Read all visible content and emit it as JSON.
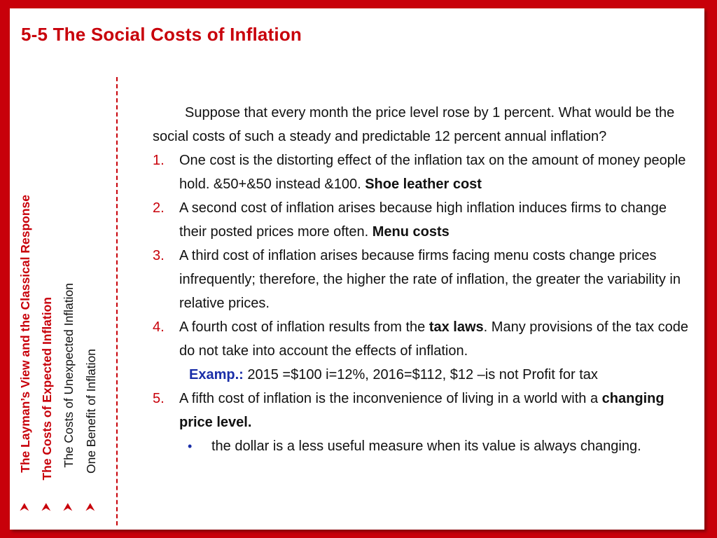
{
  "slide": {
    "title": "5-5 The Social Costs of Inflation",
    "sidebar": [
      {
        "label": "The Layman’s View and the Classical Response",
        "style": "red"
      },
      {
        "label": "The Costs of Expected Inflation",
        "style": "red"
      },
      {
        "label": "The Costs of Unexpected Inflation",
        "style": "black"
      },
      {
        "label": "One Benefit of Inflation",
        "style": "black"
      }
    ],
    "arrow_glyph": "⮝",
    "intro": "Suppose that every month the price level rose by 1 percent. What would be the social costs of such a steady and predictable 12 percent annual inflation?",
    "items": [
      {
        "num": "1.",
        "text": "One cost is the distorting effect of the inflation tax on the amount of money people hold.  &50+&50 instead &100. ",
        "bold": "Shoe leather cost",
        "after": ""
      },
      {
        "num": "2.",
        "text": "A second cost of inflation arises because high inflation induces firms to change their posted prices more often. ",
        "bold": "Menu costs",
        "after": ""
      },
      {
        "num": "3.",
        "text": "A third cost of inflation arises because firms facing menu costs change prices infrequently; therefore, the higher the rate of inflation, the greater the variability in relative prices.",
        "bold": "",
        "after": ""
      },
      {
        "num": "4.",
        "text": "A fourth cost of inflation results from the ",
        "bold": "tax laws",
        "after": ". Many provisions of the tax code do not take into account the effects of inflation."
      }
    ],
    "example": {
      "label": "Examp.:",
      "text": " 2015 =$100  i=12%, 2016=$112, $12 –is not Profit for tax"
    },
    "item5": {
      "num": "5.",
      "text": "A fifth cost of inflation is the inconvenience of living in a world with a ",
      "bold": "changing price level."
    },
    "bullet": {
      "dot": "•",
      "text": "the dollar is a less useful measure when its value is always changing."
    },
    "colors": {
      "accent": "#c8000a",
      "example_label": "#1a2ea8"
    }
  }
}
